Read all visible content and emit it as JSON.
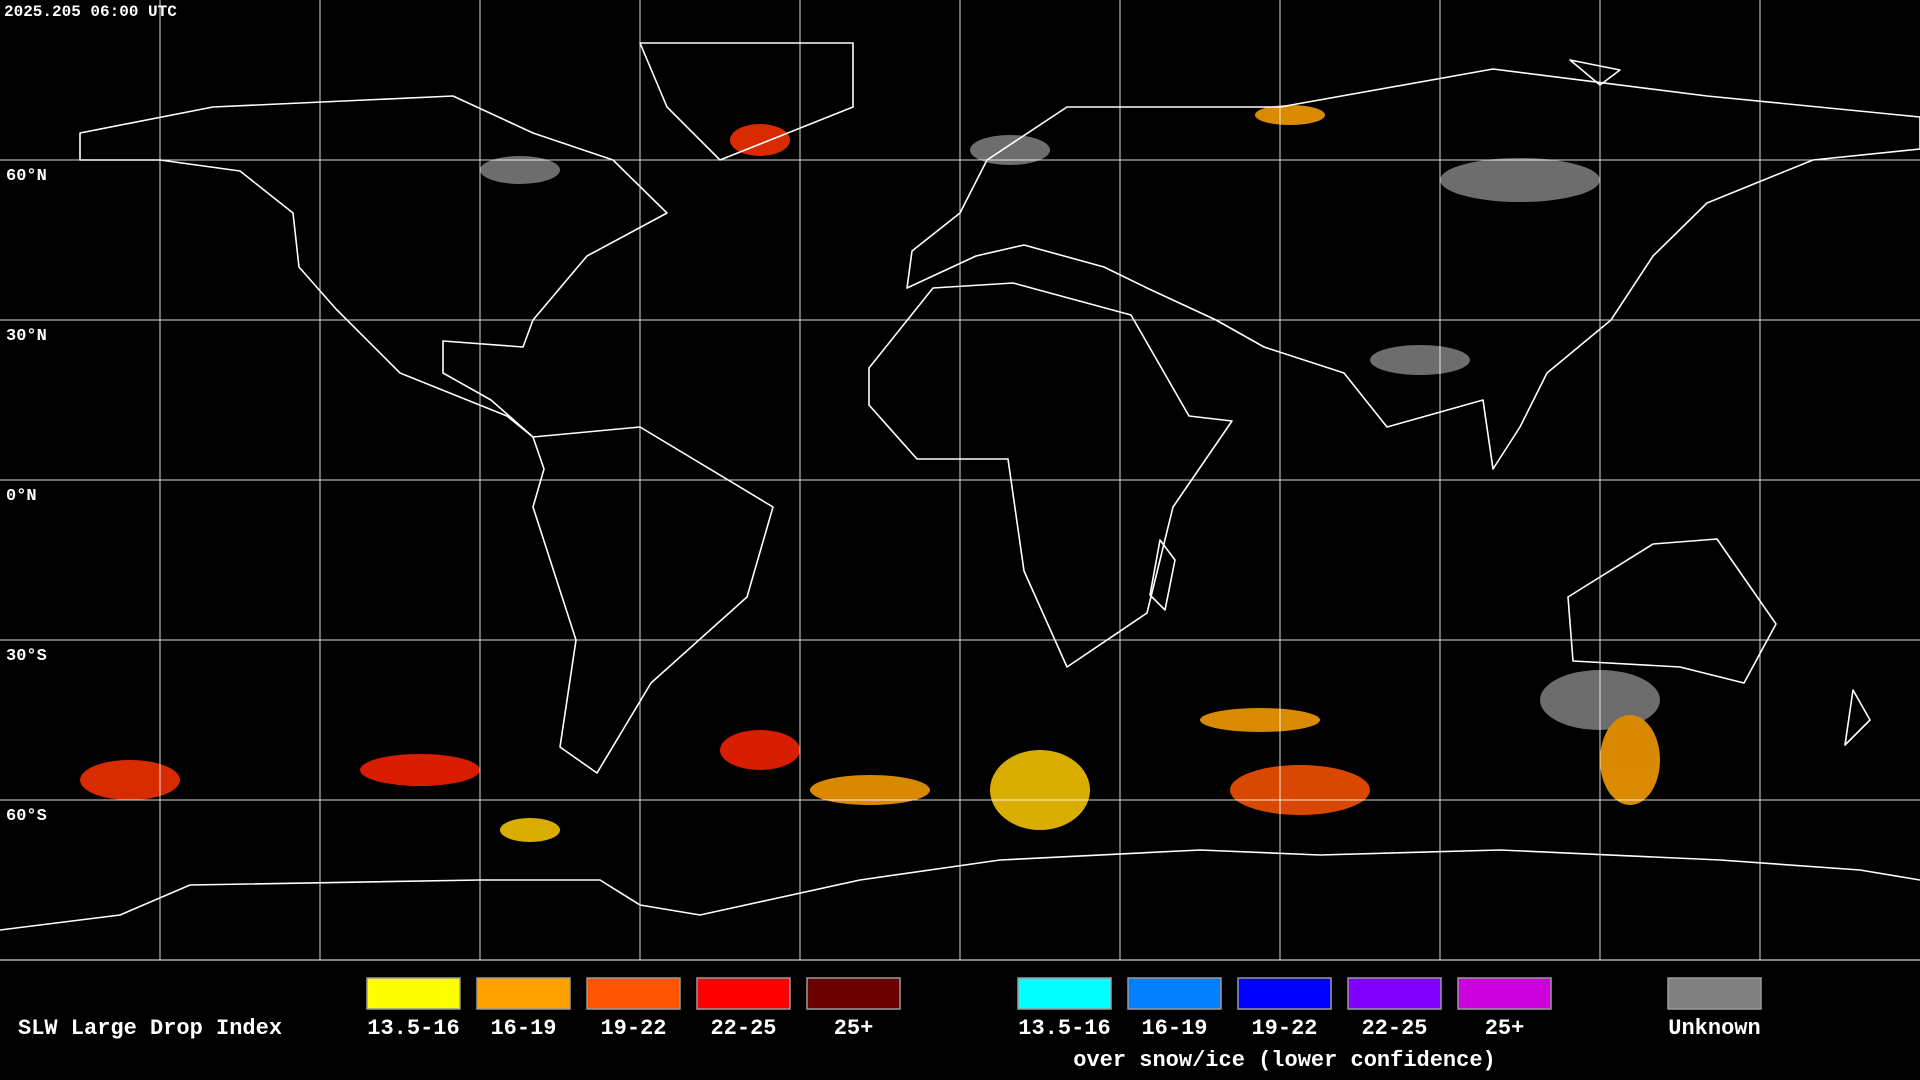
{
  "timestamp": "2025.205 06:00 UTC",
  "latitude_labels": [
    "60°N",
    "30°N",
    "0°N",
    "30°S",
    "60°S"
  ],
  "legend": {
    "title": "SLW Large Drop Index",
    "groups": [
      {
        "items": [
          {
            "label": "13.5-16",
            "color": "#ffff00"
          },
          {
            "label": "16-19",
            "color": "#ffa200"
          },
          {
            "label": "19-22",
            "color": "#ff5500"
          },
          {
            "label": "22-25",
            "color": "#ff0000"
          },
          {
            "label": "25+",
            "color": "#6b0000"
          }
        ]
      },
      {
        "items": [
          {
            "label": "13.5-16",
            "color": "#00ffff"
          },
          {
            "label": "16-19",
            "color": "#0080ff"
          },
          {
            "label": "19-22",
            "color": "#0000ff"
          },
          {
            "label": "22-25",
            "color": "#7f00ff"
          },
          {
            "label": "25+",
            "color": "#cc00dd"
          }
        ],
        "caption": "over snow/ice (lower confidence)"
      },
      {
        "items": [
          {
            "label": "Unknown",
            "color": "#808080"
          }
        ]
      }
    ]
  }
}
